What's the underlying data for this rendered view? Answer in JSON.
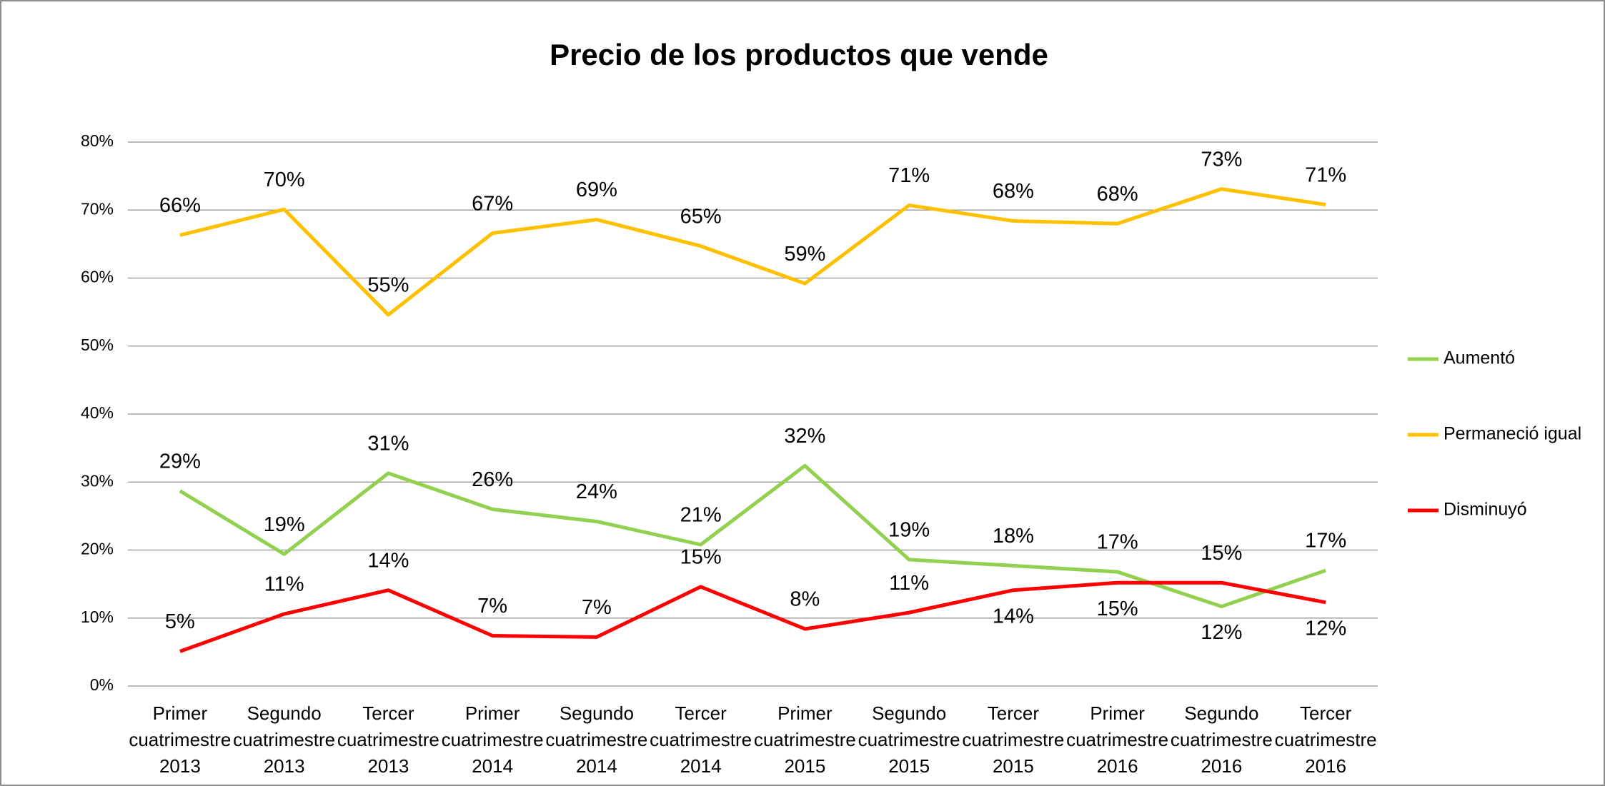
{
  "chart_data": {
    "type": "line",
    "title": "Precio de los productos que vende",
    "categories": [
      "Primer cuatrimestre 2013",
      "Segundo cuatrimestre 2013",
      "Tercer cuatrimestre 2013",
      "Primer cuatrimestre 2014",
      "Segundo cuatrimestre 2014",
      "Tercer cuatrimestre 2014",
      "Primer cuatrimestre 2015",
      "Segundo cuatrimestre 2015",
      "Tercer cuatrimestre 2015",
      "Primer cuatrimestre 2016",
      "Segundo cuatrimestre 2016",
      "Tercer cuatrimestre 2016"
    ],
    "series": [
      {
        "name": "Aumentó",
        "color": "#92d050",
        "values": [
          28.7,
          19.4,
          31.3,
          26.0,
          24.2,
          20.8,
          32.4,
          18.6,
          17.7,
          16.8,
          11.7,
          17.0
        ],
        "value_labels": [
          "29%",
          "19%",
          "31%",
          "26%",
          "24%",
          "21%",
          "32%",
          "19%",
          "18%",
          "17%",
          "12%",
          "17%"
        ]
      },
      {
        "name": "Permaneció igual",
        "color": "#ffc000",
        "values": [
          66.3,
          70.1,
          54.6,
          66.6,
          68.6,
          64.7,
          59.2,
          70.7,
          68.4,
          68.0,
          73.1,
          70.8
        ],
        "value_labels": [
          "66%",
          "70%",
          "55%",
          "67%",
          "69%",
          "65%",
          "59%",
          "71%",
          "68%",
          "68%",
          "73%",
          "71%"
        ]
      },
      {
        "name": "Disminuyó",
        "color": "#ff0000",
        "values": [
          5.1,
          10.6,
          14.1,
          7.4,
          7.2,
          14.6,
          8.4,
          10.8,
          14.1,
          15.2,
          15.2,
          12.3
        ],
        "value_labels": [
          "5%",
          "11%",
          "14%",
          "7%",
          "7%",
          "15%",
          "8%",
          "11%",
          "14%",
          "15%",
          "15%",
          "12%"
        ]
      }
    ],
    "ylim": [
      0,
      80
    ],
    "yticks": [
      {
        "value": 0,
        "label": "0%"
      },
      {
        "value": 10,
        "label": "10%"
      },
      {
        "value": 20,
        "label": "20%"
      },
      {
        "value": 30,
        "label": "30%"
      },
      {
        "value": 40,
        "label": "40%"
      },
      {
        "value": 50,
        "label": "50%"
      },
      {
        "value": 60,
        "label": "60%"
      },
      {
        "value": 70,
        "label": "70%"
      },
      {
        "value": 80,
        "label": "80%"
      }
    ],
    "grid": true,
    "legend": "right"
  }
}
